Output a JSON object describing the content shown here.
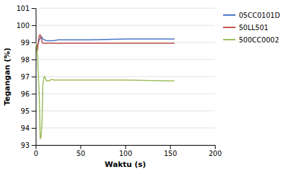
{
  "chart_data": {
    "type": "line",
    "xlabel": "Waktu (s)",
    "ylabel": "Tegangan (%)",
    "xlim": [
      0,
      200
    ],
    "ylim": [
      93,
      101
    ],
    "xticks": [
      0,
      50,
      100,
      150,
      200
    ],
    "yticks": [
      93,
      94,
      95,
      96,
      97,
      98,
      99,
      100,
      101
    ],
    "grid": "y",
    "legend": "upper right",
    "series": [
      {
        "name": "05CC0101D",
        "color": "#4472C4",
        "x": [
          0,
          1,
          2,
          3,
          4,
          5,
          6,
          7,
          8,
          9,
          10,
          12,
          15,
          20,
          25,
          30,
          40,
          60,
          100,
          150,
          155
        ],
        "values": [
          99.0,
          98.9,
          98.7,
          99.0,
          99.15,
          99.25,
          99.35,
          99.3,
          99.2,
          99.15,
          99.15,
          99.1,
          99.1,
          99.1,
          99.15,
          99.15,
          99.15,
          99.15,
          99.2,
          99.2,
          99.2
        ]
      },
      {
        "name": "50LL501",
        "color": "#C0504D",
        "x": [
          0,
          1,
          2,
          3,
          4,
          5,
          6,
          7,
          8,
          9,
          10,
          12,
          15,
          20,
          25,
          30,
          40,
          60,
          100,
          150,
          155
        ],
        "values": [
          99.0,
          98.85,
          98.5,
          99.1,
          99.4,
          99.45,
          99.3,
          99.05,
          98.95,
          98.95,
          98.95,
          98.95,
          98.95,
          98.95,
          98.95,
          98.95,
          98.95,
          98.95,
          98.95,
          98.95,
          98.95
        ]
      },
      {
        "name": "500CC0002",
        "color": "#9BBB59",
        "x": [
          0,
          1,
          2,
          3,
          4,
          5,
          6,
          7,
          8,
          9,
          10,
          12,
          15,
          18,
          20,
          25,
          30,
          40,
          60,
          100,
          150,
          155
        ],
        "values": [
          99.0,
          98.8,
          98.3,
          97.0,
          96.0,
          93.35,
          93.5,
          94.2,
          96.5,
          96.9,
          97.0,
          96.75,
          96.75,
          96.85,
          96.8,
          96.8,
          96.8,
          96.8,
          96.8,
          96.8,
          96.75,
          96.75
        ]
      }
    ]
  }
}
